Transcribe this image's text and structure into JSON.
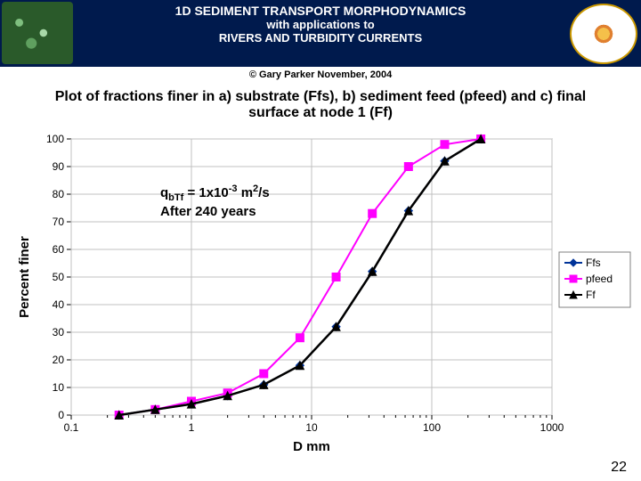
{
  "header": {
    "line1": "1D SEDIMENT TRANSPORT MORPHODYNAMICS",
    "line2": "with applications to",
    "line3": "RIVERS AND TURBIDITY CURRENTS"
  },
  "copyright": "© Gary Parker November, 2004",
  "chart": {
    "title": "Plot of fractions finer in a) substrate (Ffs), b) sediment feed (pfeed) and c) final surface at node 1 (Ff)",
    "xlabel": "D mm",
    "ylabel": "Percent finer",
    "x_log": true,
    "xlim": [
      0.1,
      1000
    ],
    "ylim": [
      0,
      100
    ],
    "ytick_step": 10,
    "xtick_labels": [
      "0.1",
      "1",
      "10",
      "100",
      "1000"
    ],
    "background_color": "#ffffff",
    "grid_color": "#c0c0c0",
    "axis_color": "#808080",
    "tick_fontsize": 12,
    "label_fontsize": 15,
    "title_fontsize": 16,
    "legend": {
      "entries": [
        "Ffs",
        "pfeed",
        "Ff"
      ],
      "colors": [
        "#003399",
        "#ff00ff",
        "#000000"
      ],
      "markers": [
        "diamond",
        "square",
        "triangle"
      ],
      "position": "right"
    },
    "series": [
      {
        "name": "Ffs",
        "color": "#003399",
        "marker": "diamond",
        "linewidth": 2,
        "marker_size": 7,
        "x": [
          0.25,
          0.5,
          1,
          2,
          4,
          8,
          16,
          32,
          64,
          128,
          256
        ],
        "y": [
          0,
          2,
          4,
          7,
          11,
          18,
          32,
          52,
          74,
          92,
          100
        ]
      },
      {
        "name": "pfeed",
        "color": "#ff00ff",
        "marker": "square",
        "linewidth": 2,
        "marker_size": 7,
        "x": [
          0.25,
          0.5,
          1,
          2,
          4,
          8,
          16,
          32,
          64,
          128,
          256
        ],
        "y": [
          0,
          2,
          5,
          8,
          15,
          28,
          50,
          73,
          90,
          98,
          100
        ]
      },
      {
        "name": "Ff",
        "color": "#000000",
        "marker": "triangle",
        "linewidth": 2.5,
        "marker_size": 7,
        "x": [
          0.25,
          0.5,
          1,
          2,
          4,
          8,
          16,
          32,
          64,
          128,
          256
        ],
        "y": [
          0,
          2,
          4,
          7,
          11,
          18,
          32,
          52,
          74,
          92,
          100
        ]
      }
    ]
  },
  "annotation": {
    "pre": "q",
    "sub": "bTf",
    "mid": " = 1x10",
    "sup": "-3",
    "post": " m",
    "sup2": "2",
    "tail": "/s",
    "line2": "After 240 years"
  },
  "page_number": "22"
}
